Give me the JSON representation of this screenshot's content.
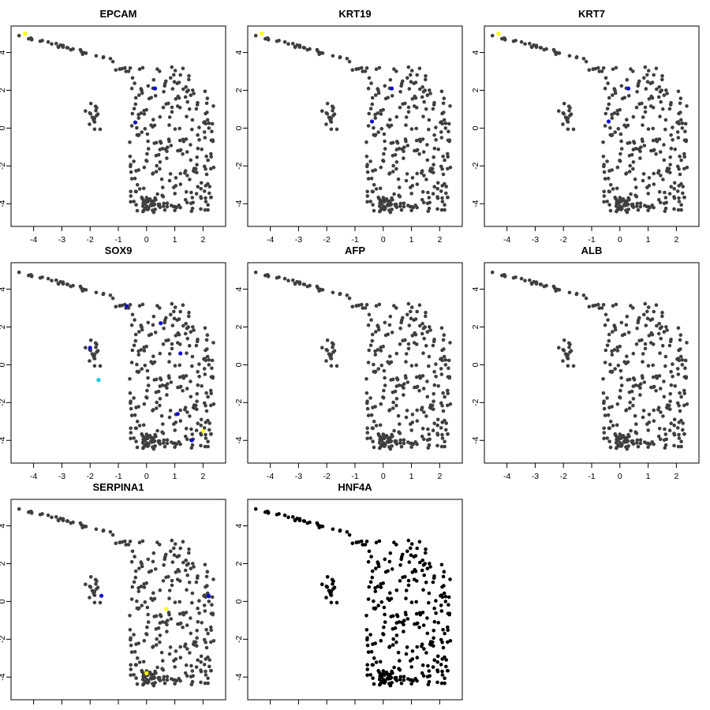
{
  "figure": {
    "background": "#ffffff",
    "point_color_default": "#3f3f3f",
    "point_color_black": "#000000",
    "expression_colors": {
      "low": "#1010cc",
      "mid": "#00c8e6",
      "high": "#ffff00"
    }
  },
  "chart_data": [
    {
      "type": "scatter",
      "title": "EPCAM",
      "xlim": [
        -4.8,
        2.8
      ],
      "ylim": [
        -5.2,
        5.4
      ],
      "x_ticks": [
        -4,
        -3,
        -2,
        -1,
        0,
        1,
        2
      ],
      "y_ticks": [
        -4,
        -2,
        0,
        2,
        4
      ],
      "highlight": [
        {
          "x": -4.3,
          "y": 5.0,
          "level": "high"
        },
        {
          "x": -0.4,
          "y": 0.3,
          "level": "low"
        },
        {
          "x": 0.3,
          "y": 2.1,
          "level": "low"
        }
      ]
    },
    {
      "type": "scatter",
      "title": "KRT19",
      "xlim": [
        -4.8,
        2.8
      ],
      "ylim": [
        -5.2,
        5.4
      ],
      "x_ticks": [
        -4,
        -3,
        -2,
        -1,
        0,
        1,
        2
      ],
      "y_ticks": [
        -4,
        -2,
        0,
        2,
        4
      ],
      "highlight": [
        {
          "x": -4.3,
          "y": 5.0,
          "level": "high"
        },
        {
          "x": -0.4,
          "y": 0.35,
          "level": "low"
        },
        {
          "x": 0.3,
          "y": 2.1,
          "level": "low"
        }
      ]
    },
    {
      "type": "scatter",
      "title": "KRT7",
      "xlim": [
        -4.8,
        2.8
      ],
      "ylim": [
        -5.2,
        5.4
      ],
      "x_ticks": [
        -4,
        -3,
        -2,
        -1,
        0,
        1,
        2
      ],
      "y_ticks": [
        -4,
        -2,
        0,
        2,
        4
      ],
      "highlight": [
        {
          "x": -4.3,
          "y": 5.0,
          "level": "high"
        },
        {
          "x": -0.4,
          "y": 0.35,
          "level": "low"
        },
        {
          "x": 0.3,
          "y": 2.1,
          "level": "low"
        }
      ]
    },
    {
      "type": "scatter",
      "title": "SOX9",
      "xlim": [
        -4.8,
        2.8
      ],
      "ylim": [
        -5.2,
        5.4
      ],
      "x_ticks": [
        -4,
        -3,
        -2,
        -1,
        0,
        1,
        2
      ],
      "y_ticks": [
        -4,
        -2,
        0,
        2,
        4
      ],
      "highlight": [
        {
          "x": 2.0,
          "y": -3.5,
          "level": "high"
        },
        {
          "x": -1.7,
          "y": -0.8,
          "level": "mid"
        },
        {
          "x": -2.0,
          "y": 0.9,
          "level": "low"
        },
        {
          "x": 1.1,
          "y": -2.6,
          "level": "low"
        },
        {
          "x": 1.2,
          "y": 0.6,
          "level": "low"
        },
        {
          "x": 1.6,
          "y": -4.0,
          "level": "low"
        },
        {
          "x": 0.5,
          "y": 2.2,
          "level": "low"
        },
        {
          "x": -0.7,
          "y": 3.1,
          "level": "low"
        }
      ]
    },
    {
      "type": "scatter",
      "title": "AFP",
      "xlim": [
        -4.8,
        2.8
      ],
      "ylim": [
        -5.2,
        5.4
      ],
      "x_ticks": [
        -4,
        -3,
        -2,
        -1,
        0,
        1,
        2
      ],
      "y_ticks": [
        -4,
        -2,
        0,
        2,
        4
      ],
      "highlight": []
    },
    {
      "type": "scatter",
      "title": "ALB",
      "xlim": [
        -4.8,
        2.8
      ],
      "ylim": [
        -5.2,
        5.4
      ],
      "x_ticks": [
        -4,
        -3,
        -2,
        -1,
        0,
        1,
        2
      ],
      "y_ticks": [
        -4,
        -2,
        0,
        2,
        4
      ],
      "highlight": []
    },
    {
      "type": "scatter",
      "title": "SERPINA1",
      "xlim": [
        -4.8,
        2.8
      ],
      "ylim": [
        -5.2,
        5.4
      ],
      "x_ticks": [],
      "y_ticks": [
        -4,
        -2,
        0,
        2,
        4
      ],
      "highlight": [
        {
          "x": 0.7,
          "y": -0.4,
          "level": "high"
        },
        {
          "x": 0.0,
          "y": -3.8,
          "level": "high"
        },
        {
          "x": -1.6,
          "y": 0.3,
          "level": "low"
        },
        {
          "x": 2.2,
          "y": 0.3,
          "level": "low"
        }
      ]
    },
    {
      "type": "scatter",
      "title": "HNF4A",
      "xlim": [
        -4.8,
        2.8
      ],
      "ylim": [
        -5.2,
        5.4
      ],
      "x_ticks": [],
      "y_ticks": [
        -4,
        -2,
        0,
        2,
        4
      ],
      "all_black": true,
      "highlight": []
    }
  ]
}
